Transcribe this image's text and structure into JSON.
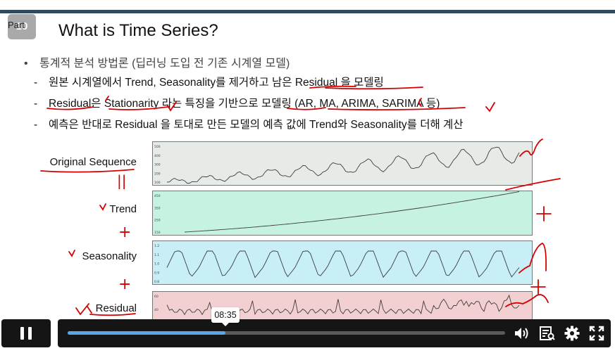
{
  "slide": {
    "part_label": "Part",
    "part_number": "10",
    "title": "What is Time Series?",
    "bullet": "통계적 분석 방법론 (딥러닝 도입 전 기존 시계열 모델)",
    "bullet_marker": "•",
    "dash": "-",
    "subitems": [
      "원본 시계열에서 Trend, Seasonality를 제거하고 남은 Residual 을 모델링",
      "Residual은 Stationarity 라는 특징을 기반으로 모델링 (AR, MA, ARIMA, SARIMA 등)",
      "예측은 반대로 Residual 을 토대로 만든 모델의 예측 값에 Trend와 Seasonality를 더해 계산"
    ],
    "rows": [
      {
        "label": "Original Sequence",
        "color": "#e6ebe8",
        "yticks": [
          "500",
          "400",
          "300",
          "200",
          "100"
        ]
      },
      {
        "label": "Trend",
        "color": "#c6f2e1",
        "yticks": [
          "450",
          "350",
          "250",
          "150"
        ]
      },
      {
        "label": "Seasonality",
        "color": "#c8eef6",
        "yticks": [
          "1.2",
          "1.1",
          "1.0",
          "0.9",
          "0.8"
        ]
      },
      {
        "label": "Residual",
        "color": "#f2cfd0",
        "yticks": [
          "60",
          "40",
          "20"
        ]
      }
    ],
    "annotations": [
      "||",
      "+",
      "+"
    ]
  },
  "player": {
    "time_tooltip": "08:35",
    "progress": 0.36,
    "accent": "#5aa7e8",
    "controls": [
      "pause-icon",
      "volume-icon",
      "transcript-icon",
      "settings-gear-icon",
      "fullscreen-icon"
    ]
  }
}
